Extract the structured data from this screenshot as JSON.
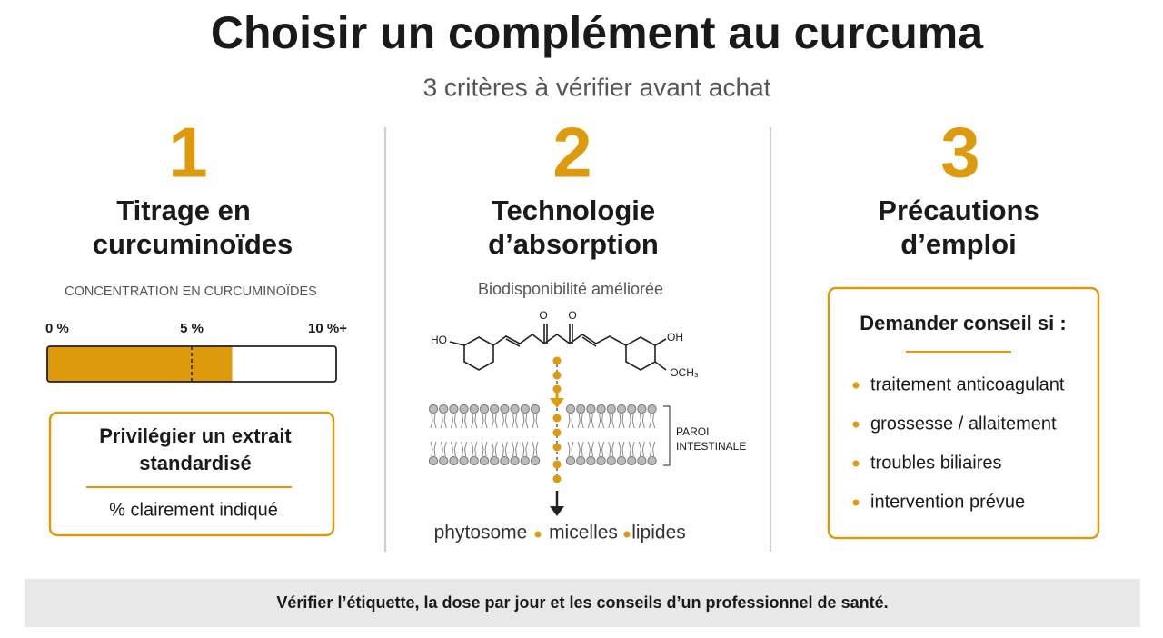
{
  "header": {
    "title": "Choisir un complément au curcuma",
    "subtitle": "3 critères à vérifier avant achat"
  },
  "columns": [
    {
      "number": "1",
      "title_lines": [
        "Titrage en",
        "curcuminoïdes"
      ],
      "caption": "CONCENTRATION EN CURCUMINOÏDES",
      "gauge": {
        "min": 0,
        "max": 10,
        "value": 6.4,
        "marker": 5,
        "ticks": [
          {
            "value": 0,
            "label": "0 %"
          },
          {
            "value": 5,
            "label": "5 %"
          },
          {
            "value": 10,
            "label": "10 %+"
          }
        ]
      },
      "box": {
        "lines": [
          "Privilégier un extrait",
          "standardisé"
        ],
        "note": "% clairement indiqué"
      }
    },
    {
      "number": "2",
      "title_lines": [
        "Technologie",
        "d’absorption"
      ],
      "caption": "Biodisponibilité améliorée",
      "molecule": {
        "left_group": "HO",
        "oxygen_1": "O",
        "oxygen_2": "O",
        "right_group_1": "OH",
        "right_group_2": "OCH₃"
      },
      "membrane_label_lines": [
        "PAROI",
        "INTESTINALE"
      ],
      "forms": [
        "phytosome",
        "micelles",
        "lipides"
      ]
    },
    {
      "number": "3",
      "title_lines": [
        "Précautions",
        "d’emploi"
      ],
      "box": {
        "heading": "Demander conseil si :",
        "items": [
          "traitement anticoagulant",
          "grossesse / allaitement",
          "troubles biliaires",
          "intervention prévue"
        ]
      }
    }
  ],
  "footer": {
    "text": "Vérifier l’étiquette, la dose par jour et les conseils d’un professionnel de santé."
  }
}
